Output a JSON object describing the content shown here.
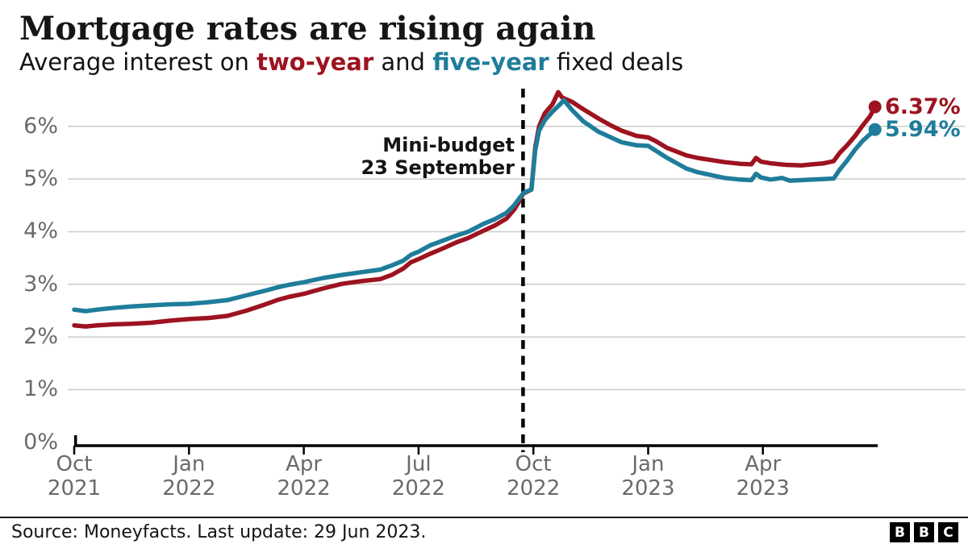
{
  "header": {
    "title": "Mortgage rates are rising again",
    "subtitle_prefix": "Average interest on ",
    "subtitle_two_year": "two-year",
    "subtitle_and": " and ",
    "subtitle_five_year": "five-year",
    "subtitle_suffix": " fixed deals"
  },
  "colors": {
    "two_year": "#9d1320",
    "five_year": "#1f7d9b",
    "grid": "#cccccc",
    "axis": "#000000",
    "tick_label": "#6a6a6a"
  },
  "chart_data": {
    "type": "line",
    "title": "Mortgage rates are rising again",
    "subtitle": "Average interest on two-year and five-year fixed deals",
    "x_unit": "months since Oct 2021",
    "xlim_months": [
      0,
      21
    ],
    "ylim": [
      0,
      6.8
    ],
    "grid": "horizontal",
    "legend_position": "inline-end-labels",
    "y_ticks": [
      {
        "value": 0,
        "label": "0%"
      },
      {
        "value": 1,
        "label": "1%"
      },
      {
        "value": 2,
        "label": "2%"
      },
      {
        "value": 3,
        "label": "3%"
      },
      {
        "value": 4,
        "label": "4%"
      },
      {
        "value": 5,
        "label": "5%"
      },
      {
        "value": 6,
        "label": "6%"
      }
    ],
    "x_ticks": [
      {
        "month": 0,
        "line1": "Oct",
        "line2": "2021"
      },
      {
        "month": 3,
        "line1": "Jan",
        "line2": "2022"
      },
      {
        "month": 6,
        "line1": "Apr",
        "line2": "2022"
      },
      {
        "month": 9,
        "line1": "Jul",
        "line2": "2022"
      },
      {
        "month": 12,
        "line1": "Oct",
        "line2": "2022"
      },
      {
        "month": 15,
        "line1": "Jan",
        "line2": "2023"
      },
      {
        "month": 18,
        "line1": "Apr",
        "line2": "2023"
      }
    ],
    "annotation": {
      "line1": "Mini-budget",
      "line2": "23 September",
      "month": 11.73
    },
    "series": [
      {
        "name": "two-year",
        "color": "#9d1320",
        "end_value": 6.37,
        "end_label": "6.37%",
        "points": [
          [
            0,
            2.22
          ],
          [
            0.3,
            2.2
          ],
          [
            0.6,
            2.22
          ],
          [
            1,
            2.24
          ],
          [
            1.5,
            2.25
          ],
          [
            2,
            2.27
          ],
          [
            2.5,
            2.31
          ],
          [
            3,
            2.34
          ],
          [
            3.5,
            2.36
          ],
          [
            4,
            2.4
          ],
          [
            4.5,
            2.5
          ],
          [
            5,
            2.62
          ],
          [
            5.3,
            2.7
          ],
          [
            5.6,
            2.76
          ],
          [
            6,
            2.82
          ],
          [
            6.5,
            2.92
          ],
          [
            7,
            3.01
          ],
          [
            7.5,
            3.06
          ],
          [
            8,
            3.1
          ],
          [
            8.3,
            3.18
          ],
          [
            8.6,
            3.3
          ],
          [
            8.8,
            3.42
          ],
          [
            9,
            3.48
          ],
          [
            9.3,
            3.58
          ],
          [
            9.6,
            3.67
          ],
          [
            10,
            3.8
          ],
          [
            10.3,
            3.88
          ],
          [
            10.7,
            4.02
          ],
          [
            11,
            4.12
          ],
          [
            11.3,
            4.25
          ],
          [
            11.5,
            4.42
          ],
          [
            11.65,
            4.6
          ],
          [
            11.73,
            4.72
          ],
          [
            11.95,
            4.8
          ],
          [
            12.05,
            5.6
          ],
          [
            12.15,
            6.0
          ],
          [
            12.3,
            6.25
          ],
          [
            12.5,
            6.42
          ],
          [
            12.65,
            6.65
          ],
          [
            12.75,
            6.55
          ],
          [
            13,
            6.47
          ],
          [
            13.3,
            6.33
          ],
          [
            13.7,
            6.15
          ],
          [
            14,
            6.03
          ],
          [
            14.3,
            5.92
          ],
          [
            14.7,
            5.82
          ],
          [
            15,
            5.79
          ],
          [
            15.2,
            5.72
          ],
          [
            15.5,
            5.59
          ],
          [
            16,
            5.45
          ],
          [
            16.3,
            5.4
          ],
          [
            17,
            5.32
          ],
          [
            17.4,
            5.29
          ],
          [
            17.7,
            5.28
          ],
          [
            17.82,
            5.4
          ],
          [
            17.95,
            5.33
          ],
          [
            18.2,
            5.3
          ],
          [
            18.6,
            5.27
          ],
          [
            19,
            5.26
          ],
          [
            19.3,
            5.28
          ],
          [
            19.6,
            5.3
          ],
          [
            19.85,
            5.34
          ],
          [
            20,
            5.49
          ],
          [
            20.2,
            5.64
          ],
          [
            20.4,
            5.81
          ],
          [
            20.6,
            6.01
          ],
          [
            20.8,
            6.19
          ],
          [
            20.93,
            6.37
          ]
        ]
      },
      {
        "name": "five-year",
        "color": "#1f7d9b",
        "end_value": 5.94,
        "end_label": "5.94%",
        "points": [
          [
            0,
            2.52
          ],
          [
            0.3,
            2.49
          ],
          [
            0.6,
            2.52
          ],
          [
            1,
            2.55
          ],
          [
            1.5,
            2.58
          ],
          [
            2,
            2.6
          ],
          [
            2.5,
            2.62
          ],
          [
            3,
            2.63
          ],
          [
            3.5,
            2.66
          ],
          [
            4,
            2.7
          ],
          [
            4.5,
            2.79
          ],
          [
            5,
            2.88
          ],
          [
            5.3,
            2.94
          ],
          [
            5.6,
            2.99
          ],
          [
            6,
            3.04
          ],
          [
            6.5,
            3.12
          ],
          [
            7,
            3.18
          ],
          [
            7.5,
            3.23
          ],
          [
            8,
            3.28
          ],
          [
            8.3,
            3.36
          ],
          [
            8.6,
            3.45
          ],
          [
            8.8,
            3.56
          ],
          [
            9,
            3.62
          ],
          [
            9.3,
            3.74
          ],
          [
            9.6,
            3.82
          ],
          [
            10,
            3.93
          ],
          [
            10.3,
            4.0
          ],
          [
            10.7,
            4.15
          ],
          [
            11,
            4.24
          ],
          [
            11.3,
            4.36
          ],
          [
            11.5,
            4.5
          ],
          [
            11.65,
            4.65
          ],
          [
            11.75,
            4.74
          ],
          [
            11.95,
            4.8
          ],
          [
            12.05,
            5.55
          ],
          [
            12.15,
            5.92
          ],
          [
            12.3,
            6.12
          ],
          [
            12.5,
            6.28
          ],
          [
            12.7,
            6.42
          ],
          [
            12.8,
            6.5
          ],
          [
            13,
            6.32
          ],
          [
            13.3,
            6.1
          ],
          [
            13.7,
            5.9
          ],
          [
            14,
            5.8
          ],
          [
            14.3,
            5.7
          ],
          [
            14.7,
            5.64
          ],
          [
            15,
            5.63
          ],
          [
            15.2,
            5.54
          ],
          [
            15.5,
            5.4
          ],
          [
            16,
            5.2
          ],
          [
            16.3,
            5.13
          ],
          [
            17,
            5.02
          ],
          [
            17.4,
            4.99
          ],
          [
            17.7,
            4.98
          ],
          [
            17.82,
            5.1
          ],
          [
            17.95,
            5.03
          ],
          [
            18.2,
            4.99
          ],
          [
            18.5,
            5.02
          ],
          [
            18.7,
            4.97
          ],
          [
            19,
            4.98
          ],
          [
            19.3,
            4.99
          ],
          [
            19.6,
            5.0
          ],
          [
            19.85,
            5.01
          ],
          [
            20,
            5.17
          ],
          [
            20.2,
            5.35
          ],
          [
            20.4,
            5.55
          ],
          [
            20.6,
            5.72
          ],
          [
            20.8,
            5.85
          ],
          [
            20.93,
            5.94
          ]
        ]
      }
    ]
  },
  "footer": {
    "source": "Source: Moneyfacts. Last update: 29 Jun 2023.",
    "logo_letters": [
      "B",
      "B",
      "C"
    ]
  }
}
